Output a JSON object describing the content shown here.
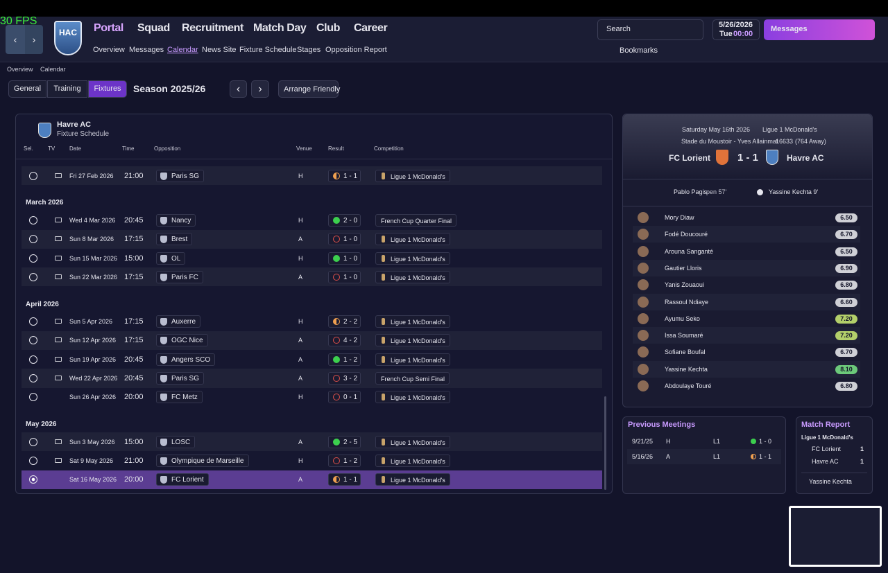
{
  "fps": "30 FPS",
  "header": {
    "badge": "HAC",
    "menu": [
      "Portal",
      "Squad",
      "Recruitment",
      "Match Day",
      "Club",
      "Career"
    ],
    "submenu": [
      "Overview",
      "Messages",
      "Calendar",
      "News Site",
      "Fixture Schedule",
      "Stages",
      "Opposition Report"
    ],
    "search": "Search",
    "date": "5/26/2026",
    "day": "Tue",
    "time": "00:00",
    "messages": "Messages",
    "bookmarks": "Bookmarks"
  },
  "breadcrumb": [
    "Overview",
    "Calendar"
  ],
  "tabs": [
    "General",
    "Training",
    "Fixtures"
  ],
  "season": "Season 2025/26",
  "arrange": "Arrange Friendly",
  "schedule": {
    "team": "Havre AC",
    "subtitle": "Fixture Schedule",
    "columns": [
      "Sel.",
      "TV",
      "Date",
      "Time",
      "Opposition",
      "Venue",
      "Result",
      "Competition"
    ],
    "rows": [
      {
        "date": "Fri 27 Feb 2026",
        "time": "21:00",
        "opposition": "Paris SG",
        "venue": "H",
        "result": "1 - 1",
        "competition": "Ligue 1 McDonald's",
        "result_icon": "half",
        "result_color": "#f0a050",
        "tv": true
      },
      {
        "month": "March 2026"
      },
      {
        "date": "Wed 4 Mar 2026",
        "time": "20:45",
        "opposition": "Nancy",
        "venue": "H",
        "result": "2 - 0",
        "competition": "French Cup Quarter Final",
        "result_icon": "filled",
        "result_color": "#3ccf4e",
        "tv": true
      },
      {
        "date": "Sun 8 Mar 2026",
        "time": "17:15",
        "opposition": "Brest",
        "venue": "A",
        "result": "1 - 0",
        "competition": "Ligue 1 McDonald's",
        "result_icon": "hollow",
        "result_color": "#e0504a",
        "tv": true
      },
      {
        "date": "Sun 15 Mar 2026",
        "time": "15:00",
        "opposition": "OL",
        "venue": "H",
        "result": "1 - 0",
        "competition": "Ligue 1 McDonald's",
        "result_icon": "filled",
        "result_color": "#3ccf4e",
        "tv": true
      },
      {
        "date": "Sun 22 Mar 2026",
        "time": "17:15",
        "opposition": "Paris FC",
        "venue": "A",
        "result": "1 - 0",
        "competition": "Ligue 1 McDonald's",
        "result_icon": "hollow",
        "result_color": "#e0504a",
        "tv": true
      },
      {
        "month": "April 2026"
      },
      {
        "date": "Sun 5 Apr 2026",
        "time": "17:15",
        "opposition": "Auxerre",
        "venue": "H",
        "result": "2 - 2",
        "competition": "Ligue 1 McDonald's",
        "result_icon": "half",
        "result_color": "#f0a050",
        "tv": true
      },
      {
        "date": "Sun 12 Apr 2026",
        "time": "17:15",
        "opposition": "OGC Nice",
        "venue": "A",
        "result": "4 - 2",
        "competition": "Ligue 1 McDonald's",
        "result_icon": "hollow",
        "result_color": "#e0504a",
        "tv": true
      },
      {
        "date": "Sun 19 Apr 2026",
        "time": "20:45",
        "opposition": "Angers SCO",
        "venue": "A",
        "result": "1 - 2",
        "competition": "Ligue 1 McDonald's",
        "result_icon": "filled",
        "result_color": "#3ccf4e",
        "tv": true
      },
      {
        "date": "Wed 22 Apr 2026",
        "time": "20:45",
        "opposition": "Paris SG",
        "venue": "A",
        "result": "3 - 2",
        "competition": "French Cup Semi Final",
        "result_icon": "hollow",
        "result_color": "#e0504a",
        "tv": true
      },
      {
        "date": "Sun 26 Apr 2026",
        "time": "20:00",
        "opposition": "FC Metz",
        "venue": "H",
        "result": "0 - 1",
        "competition": "Ligue 1 McDonald's",
        "result_icon": "hollow",
        "result_color": "#e0504a",
        "tv": false
      },
      {
        "month": "May 2026"
      },
      {
        "date": "Sun 3 May 2026",
        "time": "15:00",
        "opposition": "LOSC",
        "venue": "A",
        "result": "2 - 5",
        "competition": "Ligue 1 McDonald's",
        "result_icon": "filled",
        "result_color": "#3ccf4e",
        "tv": true
      },
      {
        "date": "Sat 9 May 2026",
        "time": "21:00",
        "opposition": "Olympique de Marseille",
        "venue": "H",
        "result": "1 - 2",
        "competition": "Ligue 1 McDonald's",
        "result_icon": "hollow",
        "result_color": "#e0504a",
        "tv": true
      },
      {
        "date": "Sat 16 May 2026",
        "time": "20:00",
        "opposition": "FC Lorient",
        "venue": "A",
        "result": "1 - 1",
        "competition": "Ligue 1 McDonald's",
        "result_icon": "half",
        "result_color": "#f0a050",
        "tv": false,
        "selected": true
      }
    ]
  },
  "match": {
    "date": "Saturday May 16th 2026",
    "competition": "Ligue 1 McDonald's",
    "stadium": "Stade du Moustoir - Yves Allainmat",
    "attendance": "16633",
    "away": "(764 Away)",
    "home_team": "FC Lorient",
    "score": "1 - 1",
    "away_team": "Havre AC",
    "home_scorer": "Pablo Pagis",
    "home_scorer_note": "pen 57'",
    "away_scorer": "Yassine Kechta 9'",
    "players": [
      {
        "name": "Mory Diaw",
        "rating": "6.50",
        "color": "#cfd0d6"
      },
      {
        "name": "Fodé Doucouré",
        "rating": "6.70",
        "color": "#cfd0d6"
      },
      {
        "name": "Arouna Sanganté",
        "rating": "6.50",
        "color": "#cfd0d6"
      },
      {
        "name": "Gautier Lloris",
        "rating": "6.90",
        "color": "#cfd0d6"
      },
      {
        "name": "Yanis Zouaoui",
        "rating": "6.80",
        "color": "#cfd0d6"
      },
      {
        "name": "Rassoul Ndiaye",
        "rating": "6.60",
        "color": "#cfd0d6"
      },
      {
        "name": "Ayumu Seko",
        "rating": "7.20",
        "color": "#b3cf6a"
      },
      {
        "name": "Issa Soumaré",
        "rating": "7.20",
        "color": "#b3cf6a"
      },
      {
        "name": "Sofiane Boufal",
        "rating": "6.70",
        "color": "#cfd0d6"
      },
      {
        "name": "Yassine Kechta",
        "rating": "8.10",
        "color": "#6cc97a"
      },
      {
        "name": "Abdoulaye Touré",
        "rating": "6.80",
        "color": "#cfd0d6"
      }
    ]
  },
  "previous": {
    "title": "Previous Meetings",
    "rows": [
      {
        "date": "9/21/25",
        "venue": "H",
        "competition": "L1",
        "result": "1 - 0",
        "result_icon": "filled",
        "result_color": "#3ccf4e"
      },
      {
        "date": "5/16/26",
        "venue": "A",
        "competition": "L1",
        "result": "1 - 1",
        "result_icon": "half",
        "result_color": "#f0a050"
      }
    ]
  },
  "report": {
    "title": "Match Report",
    "competition": "Ligue 1 McDonald's",
    "teams": [
      {
        "name": "FC Lorient",
        "goals": "1"
      },
      {
        "name": "Havre AC",
        "goals": "1"
      }
    ],
    "player_of_match": "Yassine Kechta"
  }
}
